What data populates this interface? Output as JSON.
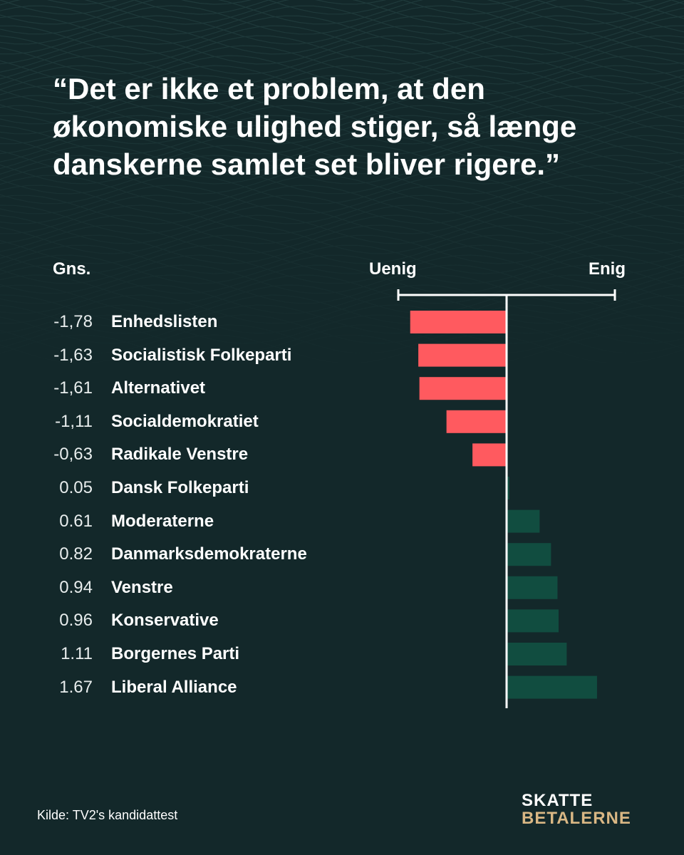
{
  "headline": "“Det er ikke et problem, at den økonomiske ulighed stiger, så længe danskerne samlet set bliver rigere.”",
  "source": "Kilde: TV2's kandidattest",
  "logo": {
    "line1": "SKATTE",
    "line2": "BETALERNE"
  },
  "colors": {
    "background": "#13282a",
    "negative": "#ff5a5f",
    "positive": "#114d40",
    "axis": "#ffffff",
    "logo_accent": "#d9b784"
  },
  "chart_data": {
    "type": "bar",
    "orientation": "horizontal",
    "value_header": "Gns.",
    "scale_left_label": "Uenig",
    "scale_right_label": "Enig",
    "xlim": [
      -2,
      2
    ],
    "categories": [
      "Enhedslisten",
      "Socialistisk Folkeparti",
      "Alternativet",
      "Socialdemokratiet",
      "Radikale Venstre",
      "Dansk Folkeparti",
      "Moderaterne",
      "Danmarksdemokraterne",
      "Venstre",
      "Konservative",
      "Borgernes Parti",
      "Liberal Alliance"
    ],
    "values": [
      -1.78,
      -1.63,
      -1.61,
      -1.11,
      -0.63,
      0.05,
      0.61,
      0.82,
      0.94,
      0.96,
      1.11,
      1.67
    ],
    "value_labels": [
      "-1,78",
      "-1,63",
      "-1,61",
      "-1,11",
      "-0,63",
      "0.05",
      "0.61",
      "0.82",
      "0.94",
      "0.96",
      "1.11",
      "1.67"
    ]
  }
}
